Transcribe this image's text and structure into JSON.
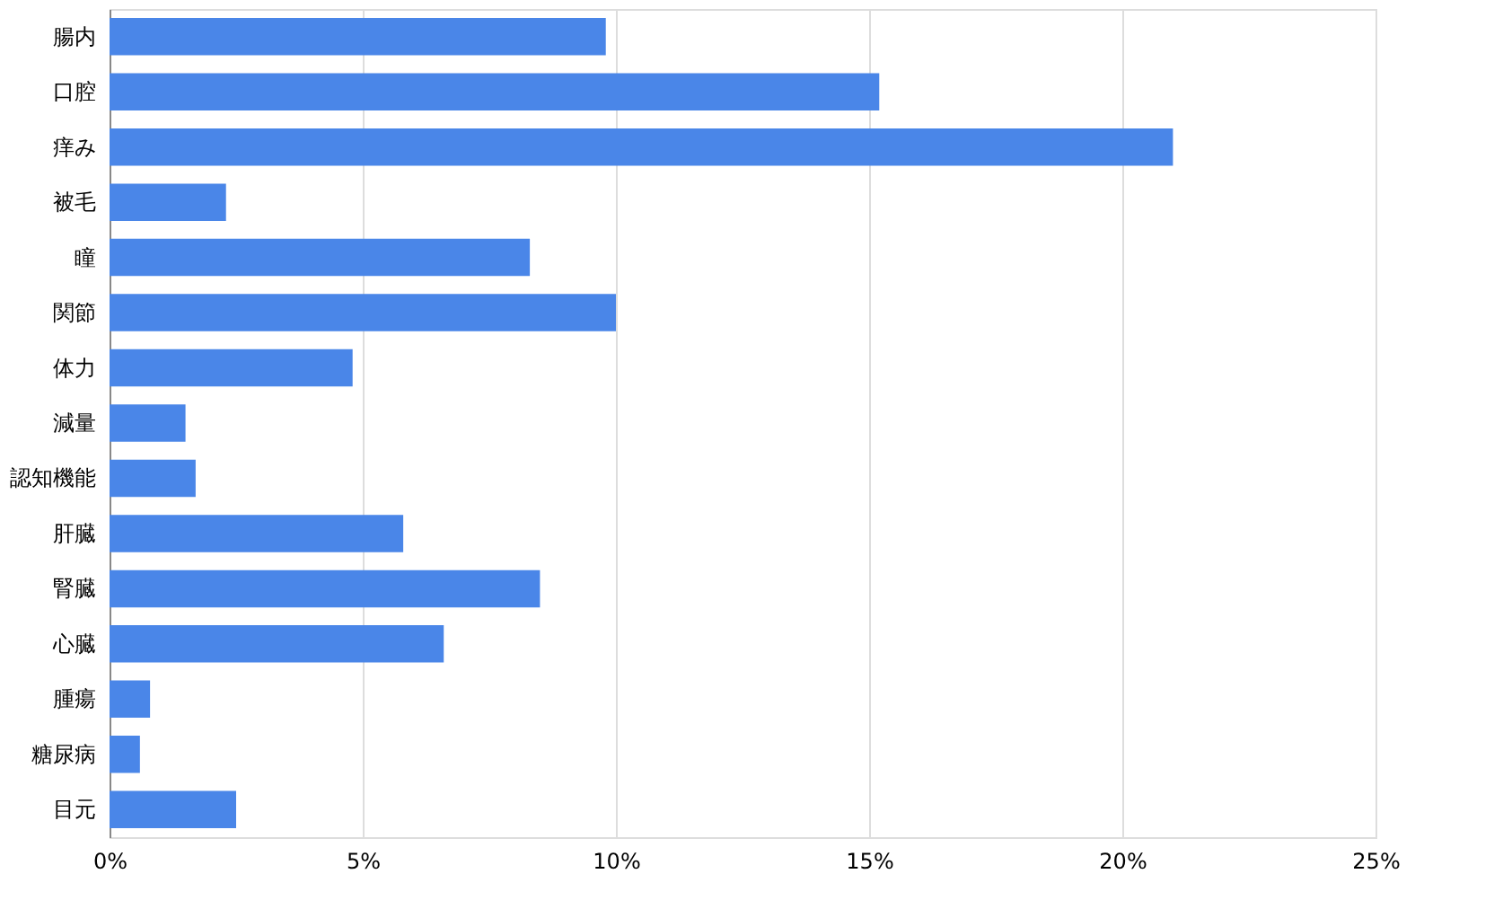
{
  "chart_data": {
    "type": "bar",
    "orientation": "horizontal",
    "categories": [
      "腸内",
      "口腔",
      "痒み",
      "被毛",
      "瞳",
      "関節",
      "体力",
      "減量",
      "認知機能",
      "肝臓",
      "腎臓",
      "心臓",
      "腫瘍",
      "糖尿病",
      "目元"
    ],
    "values": [
      9.8,
      15.2,
      21.0,
      2.3,
      8.3,
      10.0,
      4.8,
      1.5,
      1.7,
      5.8,
      8.5,
      6.6,
      0.8,
      0.6,
      2.5
    ],
    "color": "#4a86e8",
    "xlim": [
      0,
      25
    ],
    "xticks": [
      {
        "value": 0,
        "label": "0%"
      },
      {
        "value": 5,
        "label": "5%"
      },
      {
        "value": 10,
        "label": "10%"
      },
      {
        "value": 15,
        "label": "15%"
      },
      {
        "value": 20,
        "label": "20%"
      },
      {
        "value": 25,
        "label": "25%"
      }
    ],
    "grid": "x"
  }
}
